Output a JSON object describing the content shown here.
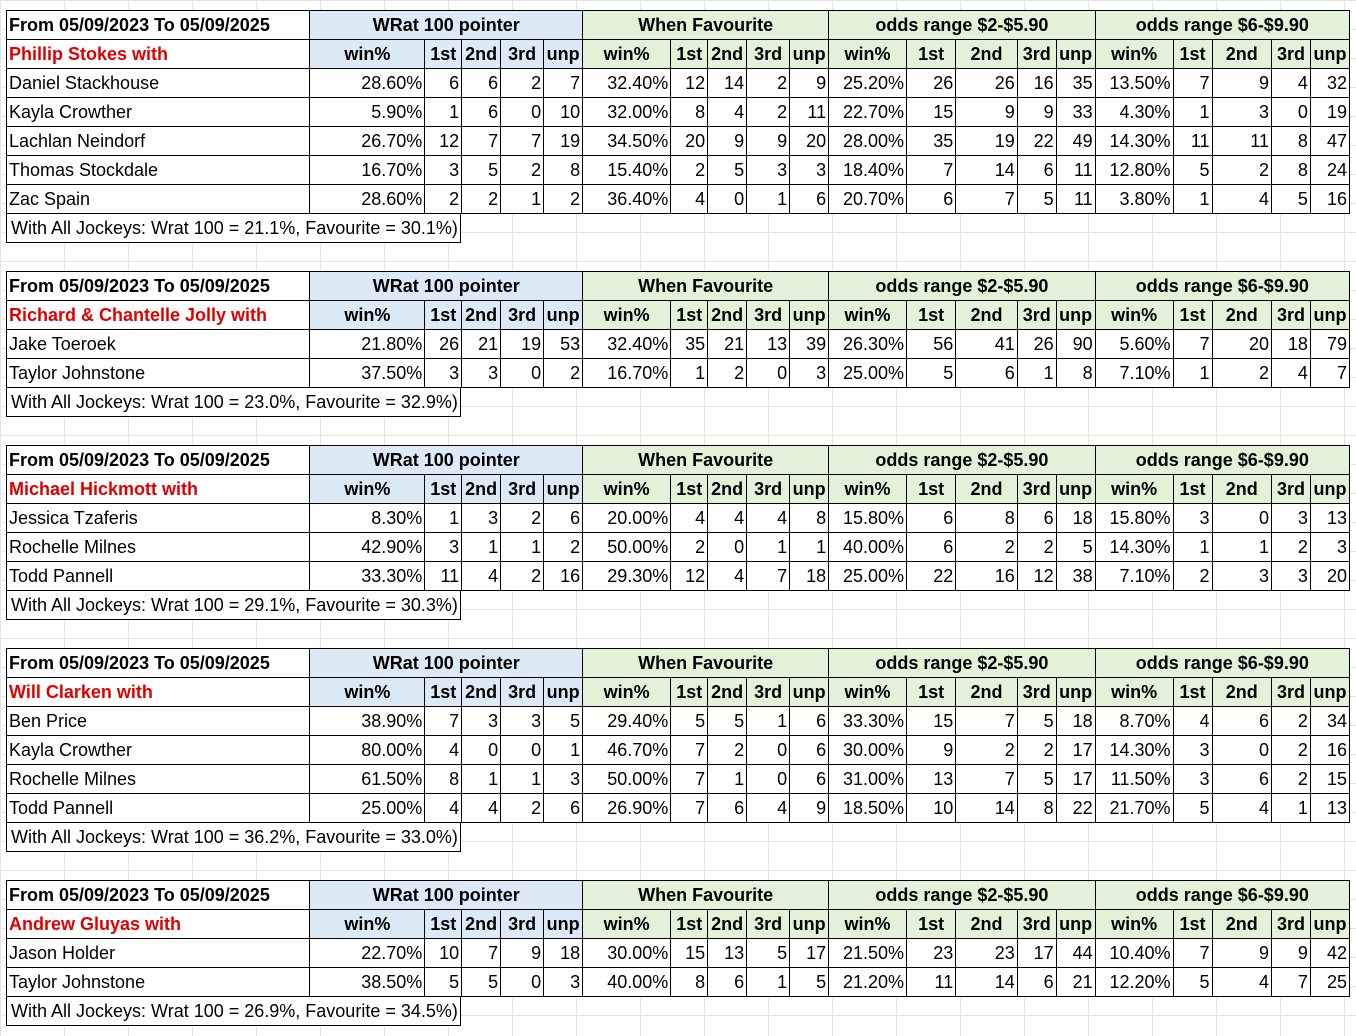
{
  "header": {
    "period": "From 05/09/2023 To 05/09/2025",
    "groups": [
      "WRat 100 pointer",
      "When Favourite",
      "odds range $2-$5.90",
      "odds range $6-$9.90"
    ],
    "cols": [
      "win%",
      "1st",
      "2nd",
      "3rd",
      "unp"
    ]
  },
  "sections": [
    {
      "trainer": "Phillip Stokes with",
      "rows": [
        {
          "jockey": "Daniel Stackhouse",
          "v": [
            "28.60%",
            "6",
            "6",
            "2",
            "7",
            "32.40%",
            "12",
            "14",
            "2",
            "9",
            "25.20%",
            "26",
            "26",
            "16",
            "35",
            "13.50%",
            "7",
            "9",
            "4",
            "32"
          ]
        },
        {
          "jockey": "Kayla Crowther",
          "v": [
            "5.90%",
            "1",
            "6",
            "0",
            "10",
            "32.00%",
            "8",
            "4",
            "2",
            "11",
            "22.70%",
            "15",
            "9",
            "9",
            "33",
            "4.30%",
            "1",
            "3",
            "0",
            "19"
          ]
        },
        {
          "jockey": "Lachlan Neindorf",
          "v": [
            "26.70%",
            "12",
            "7",
            "7",
            "19",
            "34.50%",
            "20",
            "9",
            "9",
            "20",
            "28.00%",
            "35",
            "19",
            "22",
            "49",
            "14.30%",
            "11",
            "11",
            "8",
            "47"
          ]
        },
        {
          "jockey": "Thomas Stockdale",
          "v": [
            "16.70%",
            "3",
            "5",
            "2",
            "8",
            "15.40%",
            "2",
            "5",
            "3",
            "3",
            "18.40%",
            "7",
            "14",
            "6",
            "11",
            "12.80%",
            "5",
            "2",
            "8",
            "24"
          ]
        },
        {
          "jockey": "Zac Spain",
          "v": [
            "28.60%",
            "2",
            "2",
            "1",
            "2",
            "36.40%",
            "4",
            "0",
            "1",
            "6",
            "20.70%",
            "6",
            "7",
            "5",
            "11",
            "3.80%",
            "1",
            "4",
            "5",
            "16"
          ]
        }
      ],
      "summary": "With All Jockeys: Wrat 100 = 21.1%, Favourite = 30.1%)"
    },
    {
      "trainer": "Richard & Chantelle Jolly with",
      "rows": [
        {
          "jockey": "Jake Toeroek",
          "v": [
            "21.80%",
            "26",
            "21",
            "19",
            "53",
            "32.40%",
            "35",
            "21",
            "13",
            "39",
            "26.30%",
            "56",
            "41",
            "26",
            "90",
            "5.60%",
            "7",
            "20",
            "18",
            "79"
          ]
        },
        {
          "jockey": "Taylor Johnstone",
          "v": [
            "37.50%",
            "3",
            "3",
            "0",
            "2",
            "16.70%",
            "1",
            "2",
            "0",
            "3",
            "25.00%",
            "5",
            "6",
            "1",
            "8",
            "7.10%",
            "1",
            "2",
            "4",
            "7"
          ]
        }
      ],
      "summary": "With All Jockeys: Wrat 100 = 23.0%, Favourite = 32.9%)"
    },
    {
      "trainer": "Michael Hickmott with",
      "rows": [
        {
          "jockey": "Jessica Tzaferis",
          "v": [
            "8.30%",
            "1",
            "3",
            "2",
            "6",
            "20.00%",
            "4",
            "4",
            "4",
            "8",
            "15.80%",
            "6",
            "8",
            "6",
            "18",
            "15.80%",
            "3",
            "0",
            "3",
            "13"
          ]
        },
        {
          "jockey": "Rochelle Milnes",
          "v": [
            "42.90%",
            "3",
            "1",
            "1",
            "2",
            "50.00%",
            "2",
            "0",
            "1",
            "1",
            "40.00%",
            "6",
            "2",
            "2",
            "5",
            "14.30%",
            "1",
            "1",
            "2",
            "3"
          ]
        },
        {
          "jockey": "Todd Pannell",
          "v": [
            "33.30%",
            "11",
            "4",
            "2",
            "16",
            "29.30%",
            "12",
            "4",
            "7",
            "18",
            "25.00%",
            "22",
            "16",
            "12",
            "38",
            "7.10%",
            "2",
            "3",
            "3",
            "20"
          ]
        }
      ],
      "summary": "With All Jockeys: Wrat 100 = 29.1%, Favourite = 30.3%)"
    },
    {
      "trainer": "Will Clarken with",
      "rows": [
        {
          "jockey": "Ben Price",
          "v": [
            "38.90%",
            "7",
            "3",
            "3",
            "5",
            "29.40%",
            "5",
            "5",
            "1",
            "6",
            "33.30%",
            "15",
            "7",
            "5",
            "18",
            "8.70%",
            "4",
            "6",
            "2",
            "34"
          ]
        },
        {
          "jockey": "Kayla Crowther",
          "v": [
            "80.00%",
            "4",
            "0",
            "0",
            "1",
            "46.70%",
            "7",
            "2",
            "0",
            "6",
            "30.00%",
            "9",
            "2",
            "2",
            "17",
            "14.30%",
            "3",
            "0",
            "2",
            "16"
          ]
        },
        {
          "jockey": "Rochelle Milnes",
          "v": [
            "61.50%",
            "8",
            "1",
            "1",
            "3",
            "50.00%",
            "7",
            "1",
            "0",
            "6",
            "31.00%",
            "13",
            "7",
            "5",
            "17",
            "11.50%",
            "3",
            "6",
            "2",
            "15"
          ]
        },
        {
          "jockey": "Todd Pannell",
          "v": [
            "25.00%",
            "4",
            "4",
            "2",
            "6",
            "26.90%",
            "7",
            "6",
            "4",
            "9",
            "18.50%",
            "10",
            "14",
            "8",
            "22",
            "21.70%",
            "5",
            "4",
            "1",
            "13"
          ]
        }
      ],
      "summary": "With All Jockeys: Wrat 100 = 36.2%, Favourite = 33.0%)"
    },
    {
      "trainer": "Andrew Gluyas with",
      "rows": [
        {
          "jockey": "Jason Holder",
          "v": [
            "22.70%",
            "10",
            "7",
            "9",
            "18",
            "30.00%",
            "15",
            "13",
            "5",
            "17",
            "21.50%",
            "23",
            "23",
            "17",
            "44",
            "10.40%",
            "7",
            "9",
            "9",
            "42"
          ]
        },
        {
          "jockey": "Taylor Johnstone",
          "v": [
            "38.50%",
            "5",
            "5",
            "0",
            "3",
            "40.00%",
            "8",
            "6",
            "1",
            "5",
            "21.20%",
            "11",
            "14",
            "6",
            "21",
            "12.20%",
            "5",
            "4",
            "7",
            "25"
          ]
        }
      ],
      "summary": "With All Jockeys: Wrat 100 = 26.9%, Favourite = 34.5%)"
    }
  ]
}
